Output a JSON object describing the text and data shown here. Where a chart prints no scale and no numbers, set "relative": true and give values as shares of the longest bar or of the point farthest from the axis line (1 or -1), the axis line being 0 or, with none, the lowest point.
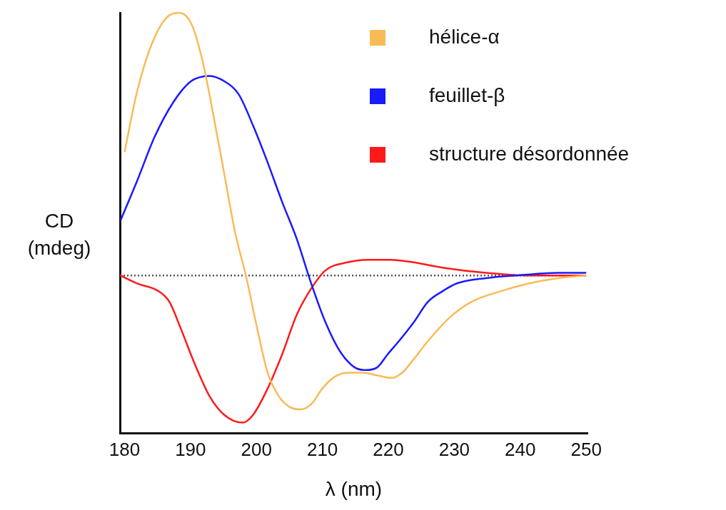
{
  "chart_data": {
    "type": "line",
    "relative": true,
    "xlabel": "λ (nm)",
    "ylabel": "CD (mdeg)",
    "xlim": [
      179.3,
      250.2
    ],
    "xticks": [
      180,
      190,
      200,
      210,
      220,
      230,
      240,
      250
    ],
    "legend": "top right",
    "marker": "none",
    "line_style": "solid",
    "ref_lines": [
      {
        "axis": "y",
        "value": 0,
        "color": "#555555",
        "line_style": "dotted"
      }
    ],
    "series": [
      {
        "name": "hélice-α",
        "color": "#f9bb56",
        "x": [
          180.0,
          181.9,
          184.1,
          186.3,
          188.3,
          190.1,
          191.8,
          193.4,
          195.1,
          196.8,
          198.4,
          200.1,
          201.7,
          203.4,
          205.0,
          206.7,
          208.3,
          210.0,
          211.6,
          213.8,
          216.1,
          218.3,
          220.5,
          222.1,
          223.8,
          226.0,
          229.3,
          232.6,
          237.0,
          241.4,
          245.8,
          250.0
        ],
        "values": [
          0.47,
          0.7,
          0.88,
          0.98,
          1.0,
          0.96,
          0.82,
          0.62,
          0.39,
          0.16,
          0,
          -0.2,
          -0.37,
          -0.46,
          -0.5,
          -0.51,
          -0.49,
          -0.43,
          -0.39,
          -0.37,
          -0.37,
          -0.38,
          -0.39,
          -0.37,
          -0.32,
          -0.25,
          -0.16,
          -0.1,
          -0.06,
          -0.03,
          -0.01,
          0
        ]
      },
      {
        "name": "feuillet-β",
        "color": "#1a1aff",
        "x": [
          179.4,
          181.9,
          184.6,
          187.4,
          190.1,
          192.9,
          195.1,
          197.3,
          199.5,
          201.7,
          203.9,
          206.1,
          208.3,
          210.5,
          212.7,
          214.9,
          216.6,
          218.3,
          219.9,
          221.6,
          223.8,
          226.0,
          228.2,
          230.4,
          234.8,
          239.2,
          245.8,
          250.0
        ],
        "values": [
          0.21,
          0.36,
          0.53,
          0.66,
          0.74,
          0.76,
          0.74,
          0.69,
          0.57,
          0.43,
          0.28,
          0.14,
          -0.03,
          -0.18,
          -0.29,
          -0.35,
          -0.36,
          -0.35,
          -0.3,
          -0.25,
          -0.18,
          -0.1,
          -0.06,
          -0.03,
          -0.01,
          0.0,
          0.01,
          0.01
        ]
      },
      {
        "name": "structure désordonnée",
        "color": "#ff1a1a",
        "x": [
          179.4,
          181.9,
          185.2,
          186.8,
          188.5,
          190.7,
          192.9,
          195.1,
          197.9,
          199.5,
          201.7,
          203.9,
          206.1,
          208.3,
          210.5,
          213.8,
          217.1,
          220.4,
          223.8,
          228.2,
          234.8,
          241.4,
          250.0
        ],
        "values": [
          0,
          -0.03,
          -0.06,
          -0.1,
          -0.2,
          -0.34,
          -0.46,
          -0.53,
          -0.56,
          -0.53,
          -0.43,
          -0.3,
          -0.15,
          -0.05,
          0.02,
          0.05,
          0.06,
          0.06,
          0.05,
          0.03,
          0.01,
          0,
          0
        ]
      }
    ]
  }
}
